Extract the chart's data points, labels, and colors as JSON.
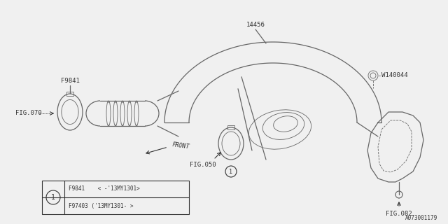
{
  "bg_color": "#f0f0f0",
  "line_color": "#666666",
  "text_color": "#333333",
  "legend_row1": "F9841    < -'13MY1301>",
  "legend_row2": "F97403 ('13MY1301- >",
  "watermark": "A073001179"
}
